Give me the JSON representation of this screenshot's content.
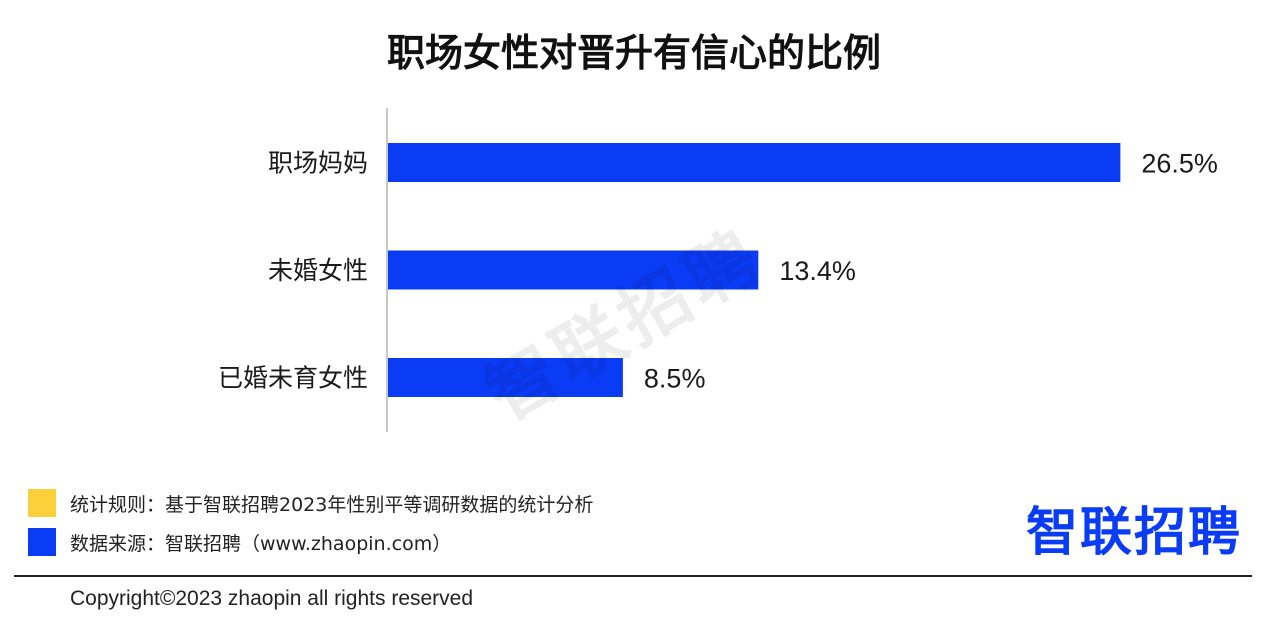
{
  "chart_data": {
    "type": "bar",
    "orientation": "horizontal",
    "title": "职场女性对晋升有信心的比例",
    "categories": [
      "职场妈妈",
      "未婚女性",
      "已婚未育女性"
    ],
    "values": [
      26.5,
      13.4,
      8.5
    ],
    "value_labels": [
      "26.5%",
      "13.4%",
      "8.5%"
    ],
    "unit": "%",
    "bar_color": "#0b3cf5",
    "grid": false,
    "xlim": [
      0,
      27.5
    ]
  },
  "watermark": "智联招聘",
  "legend": {
    "items": [
      {
        "swatch_color": "#fcd03a",
        "text": "统计规则：基于智联招聘2023年性别平等调研数据的统计分析"
      },
      {
        "swatch_color": "#0b3cf5",
        "text": "数据来源：智联招聘（www.zhaopin.com）"
      }
    ]
  },
  "logo": {
    "text": "智联招聘",
    "color": "#0b3cf5"
  },
  "footer": {
    "copyright": "Copyright©2023 zhaopin all rights reserved"
  }
}
